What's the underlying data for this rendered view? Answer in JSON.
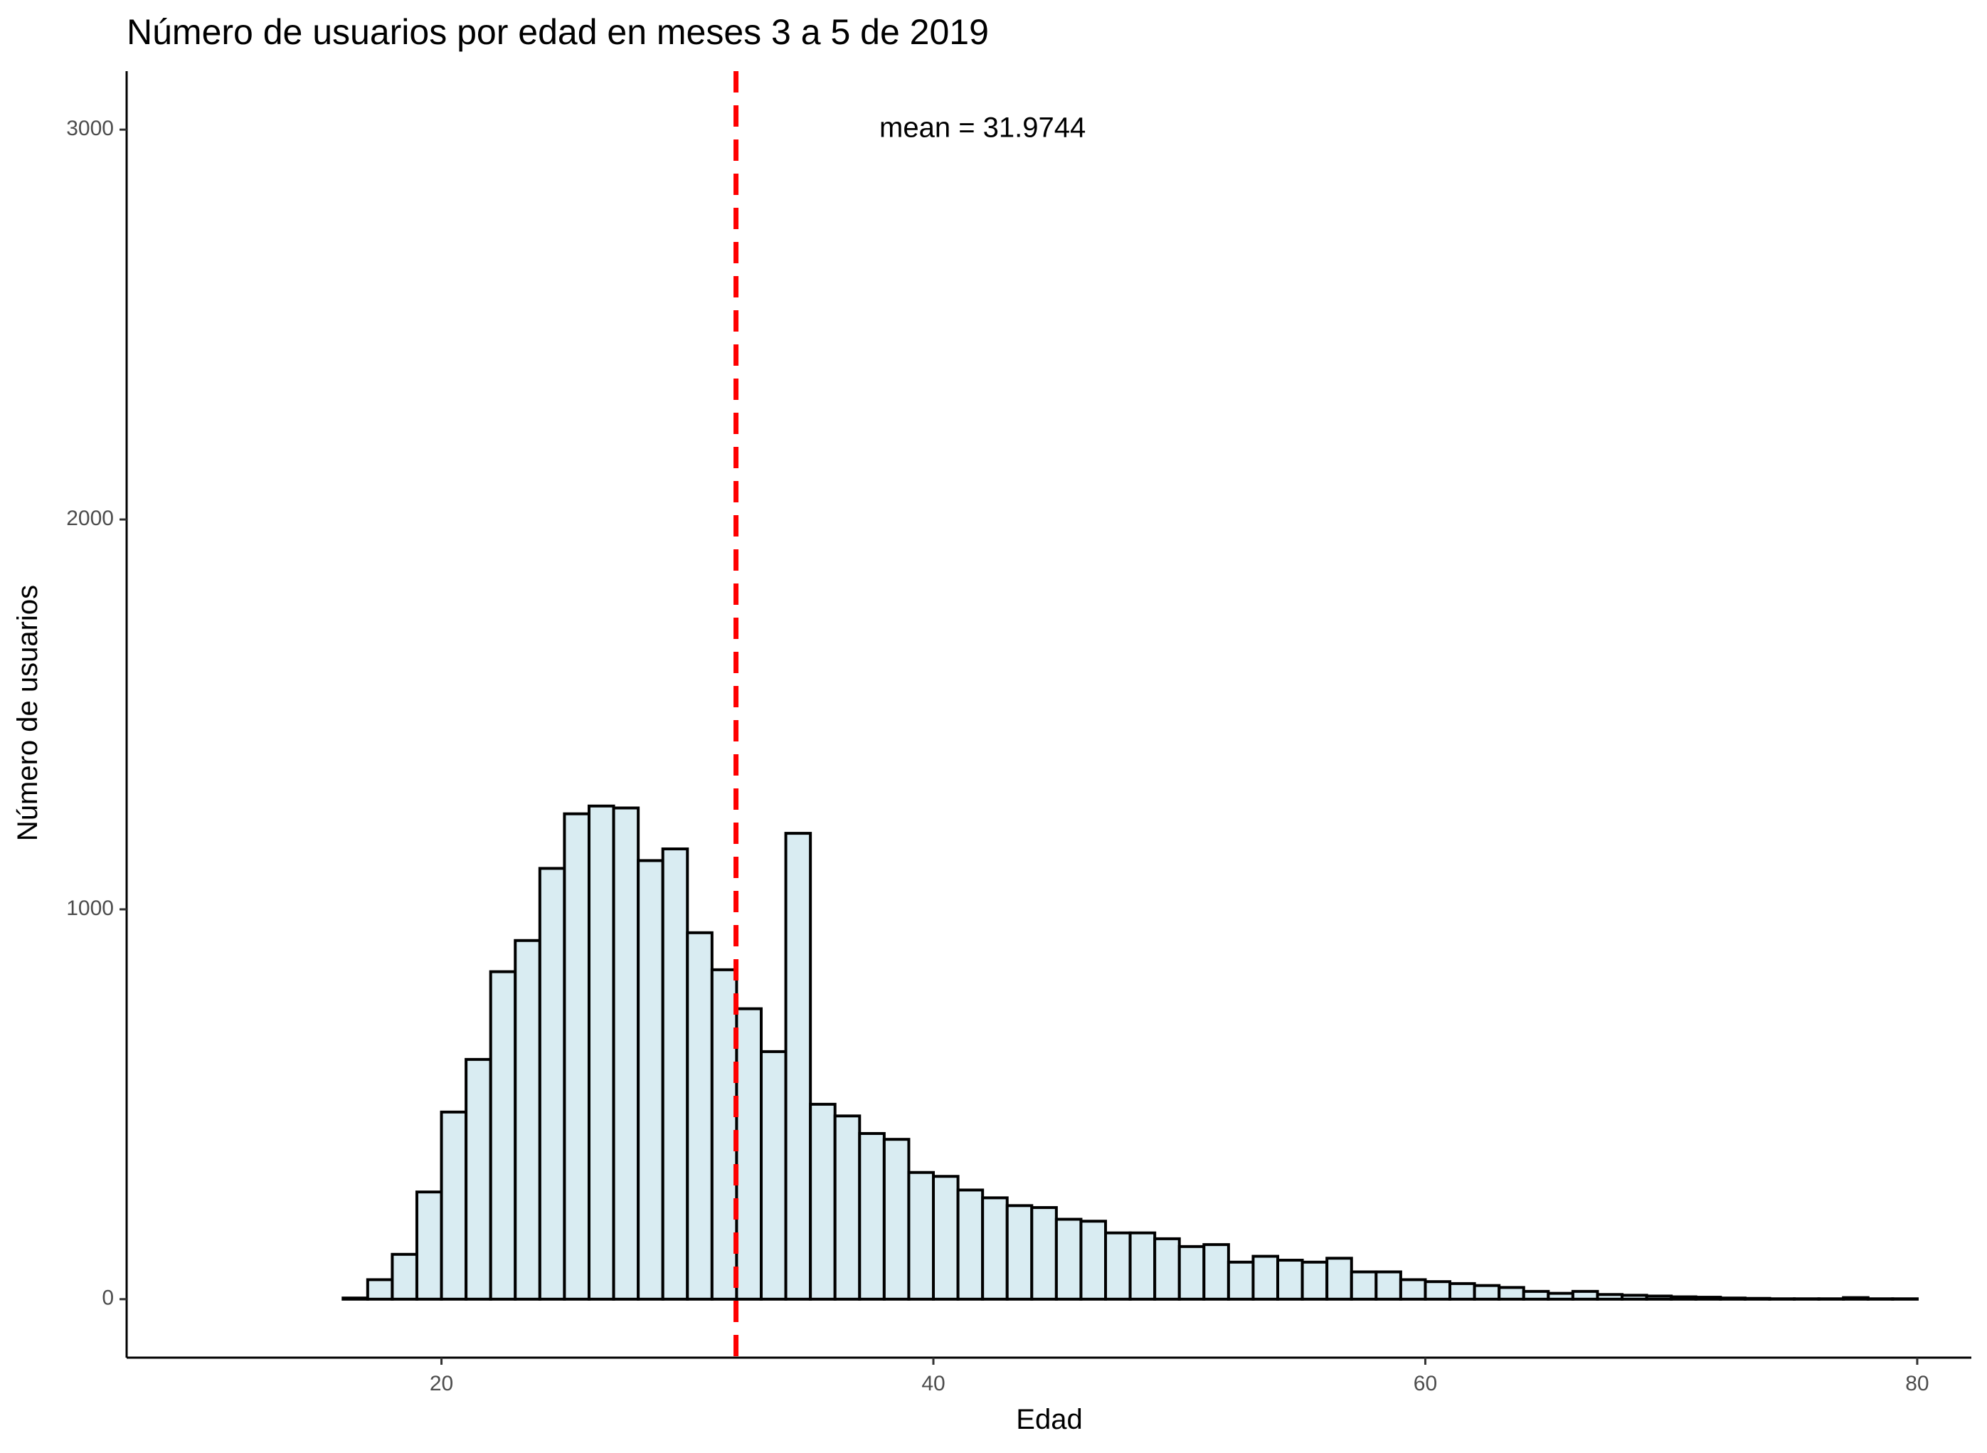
{
  "chart_data": {
    "type": "bar",
    "title": "Número de usuarios por edad en meses 3 a 5 de 2019",
    "xlabel": "Edad",
    "ylabel": "Número de usuarios",
    "xlim": [
      7.2,
      82.2
    ],
    "ylim": [
      -150,
      3150
    ],
    "x_ticks": [
      20,
      40,
      60,
      80
    ],
    "y_ticks": [
      0,
      1000,
      2000,
      3000
    ],
    "x_tick_labels": [
      "20",
      "40",
      "60",
      "80"
    ],
    "y_tick_labels": [
      "0",
      "1000",
      "2000",
      "3000"
    ],
    "bin_width": 1,
    "bins_start": [
      11,
      12,
      13,
      14,
      15,
      16,
      17,
      18,
      19,
      20,
      21,
      22,
      23,
      24,
      25,
      26,
      27,
      28,
      29,
      30,
      31,
      32,
      33,
      34,
      35,
      36,
      37,
      38,
      39,
      40,
      41,
      42,
      43,
      44,
      45,
      46,
      47,
      48,
      49,
      50,
      51,
      52,
      53,
      54,
      55,
      56,
      57,
      58,
      59,
      60,
      61,
      62,
      63,
      64,
      65,
      66,
      67,
      68,
      69,
      70,
      71,
      72,
      73,
      74,
      75,
      76,
      77,
      78,
      79
    ],
    "values": [
      0,
      0,
      0,
      0,
      0,
      3,
      50,
      115,
      275,
      480,
      615,
      840,
      920,
      1105,
      1245,
      1265,
      1260,
      1125,
      1155,
      940,
      845,
      745,
      635,
      1195,
      500,
      470,
      425,
      410,
      325,
      315,
      280,
      260,
      240,
      235,
      205,
      200,
      170,
      170,
      155,
      135,
      140,
      95,
      110,
      100,
      95,
      105,
      70,
      70,
      50,
      45,
      40,
      35,
      30,
      20,
      15,
      20,
      12,
      10,
      8,
      6,
      5,
      3,
      2,
      1,
      1,
      1,
      4,
      1,
      1
    ],
    "mean_line": {
      "value": 31.9744,
      "color": "#ff0000",
      "style": "dashed"
    },
    "annotation": {
      "text": "mean = 31.9744",
      "x": 42,
      "y": 3000
    },
    "bar_fill": "#d9ecf2",
    "bar_outline": "#000000",
    "grid": false,
    "legend": "none"
  }
}
